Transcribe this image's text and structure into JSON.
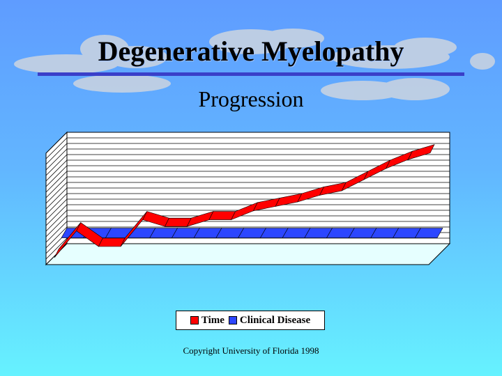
{
  "slide": {
    "title": "Degenerative Myelopathy",
    "subtitle": "Progression",
    "copyright": "Copyright University of Florida 1998"
  },
  "colors": {
    "time_series": "#ff0000",
    "clinical_series": "#2c46ff",
    "title_rule": "#3a3fc9"
  },
  "chart_data": {
    "type": "area",
    "title": "Progression",
    "projection": "3d",
    "grid": true,
    "legend_position": "bottom",
    "series": [
      {
        "name": "Time",
        "values": [
          0,
          1.2,
          0.5,
          0.5,
          1.7,
          1.4,
          1.4,
          1.7,
          1.7,
          2.1,
          2.3,
          2.5,
          2.8,
          3.0,
          3.5,
          4.0,
          4.4,
          4.7
        ]
      },
      {
        "name": "Clinical Disease",
        "values": [
          0.7,
          0.7,
          0.7,
          0.7,
          0.7,
          0.7,
          0.7,
          0.7,
          0.7,
          0.7,
          0.7,
          0.7,
          0.7,
          0.7,
          0.7,
          0.7,
          0.7,
          0.7
        ]
      }
    ]
  }
}
